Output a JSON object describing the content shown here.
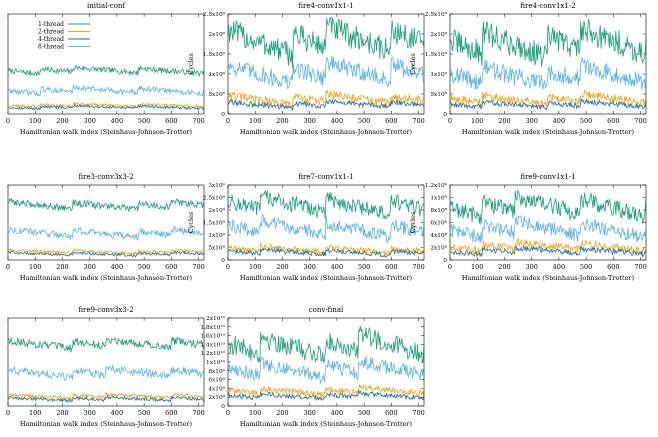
{
  "figure": {
    "series_names": [
      "1-thread",
      "2-thread",
      "4-thread",
      "8-thread"
    ],
    "series_colors": [
      "#1a9e77",
      "#f0a30a",
      "#1f6fa8",
      "#5ab4e6"
    ],
    "xlabel": "Hamiltonian walk index (Steinhaus-Johnson-Trotter)",
    "xticks": [
      "0",
      "100",
      "200",
      "300",
      "400",
      "500",
      "600",
      "700"
    ]
  },
  "chart_data": [
    {
      "type": "line",
      "title": "initial-conf",
      "xlabel": "Hamiltonian walk index (Steinhaus-Johnson-Trotter)",
      "ylabel": "",
      "xlim": [
        0,
        720
      ],
      "ylim": [
        0,
        1.0
      ],
      "yticks": [],
      "legend": {
        "position": "top-left",
        "entries": [
          "1-thread",
          "2-thread",
          "4-thread",
          "8-thread"
        ]
      },
      "series": [
        {
          "name": "1-thread",
          "level": 0.42,
          "variation": 0.06
        },
        {
          "name": "2-thread",
          "level": 0.08,
          "variation": 0.03
        },
        {
          "name": "4-thread",
          "level": 0.06,
          "variation": 0.03
        },
        {
          "name": "8-thread",
          "level": 0.22,
          "variation": 0.06
        }
      ]
    },
    {
      "type": "line",
      "title": "fire4-conv1x1-1",
      "xlabel": "Hamiltonian walk index (Steinhaus-Johnson-Trotter)",
      "ylabel": "Cycles",
      "xlim": [
        0,
        720
      ],
      "ylim": [
        0,
        2500000000
      ],
      "yticks": [
        "0",
        "5x10⁸",
        "1x10⁹",
        "1.5x10⁹",
        "2x10⁹",
        "2.5x10⁹"
      ],
      "series": [
        {
          "name": "1-thread",
          "level": 1650000000,
          "variation": 700000000
        },
        {
          "name": "2-thread",
          "level": 300000000,
          "variation": 250000000
        },
        {
          "name": "4-thread",
          "level": 200000000,
          "variation": 150000000
        },
        {
          "name": "8-thread",
          "level": 900000000,
          "variation": 500000000
        }
      ]
    },
    {
      "type": "line",
      "title": "fire4-conv1x1-2",
      "xlabel": "Hamiltonian walk index (Steinhaus-Johnson-Trotter)",
      "ylabel": "Cycles",
      "xlim": [
        0,
        720
      ],
      "ylim": [
        0,
        2500000000
      ],
      "yticks": [
        "0",
        "5x10⁸",
        "1x10⁹",
        "1.5x10⁹",
        "2x10⁹",
        "2.5x10⁹"
      ],
      "series": [
        {
          "name": "1-thread",
          "level": 1600000000,
          "variation": 700000000
        },
        {
          "name": "2-thread",
          "level": 300000000,
          "variation": 250000000
        },
        {
          "name": "4-thread",
          "level": 200000000,
          "variation": 150000000
        },
        {
          "name": "8-thread",
          "level": 850000000,
          "variation": 500000000
        }
      ]
    },
    {
      "type": "line",
      "title": "fire3-conv3x3-2",
      "xlabel": "Hamiltonian walk index (Steinhaus-Johnson-Trotter)",
      "ylabel": "",
      "xlim": [
        0,
        720
      ],
      "ylim": [
        0,
        1.0
      ],
      "yticks": [],
      "series": [
        {
          "name": "1-thread",
          "level": 0.7,
          "variation": 0.1
        },
        {
          "name": "2-thread",
          "level": 0.1,
          "variation": 0.04
        },
        {
          "name": "4-thread",
          "level": 0.07,
          "variation": 0.04
        },
        {
          "name": "8-thread",
          "level": 0.33,
          "variation": 0.1
        }
      ]
    },
    {
      "type": "line",
      "title": "fire7-conv1x1-1",
      "xlabel": "Hamiltonian walk index (Steinhaus-Johnson-Trotter)",
      "ylabel": "Cycles",
      "xlim": [
        0,
        720
      ],
      "ylim": [
        0,
        3000000000
      ],
      "yticks": [
        "0",
        "5x10⁸",
        "1x10⁹",
        "1.5x10⁹",
        "2x10⁹",
        "2.5x10⁹",
        "3x10⁹"
      ],
      "series": [
        {
          "name": "1-thread",
          "level": 2000000000,
          "variation": 700000000
        },
        {
          "name": "2-thread",
          "level": 350000000,
          "variation": 250000000
        },
        {
          "name": "4-thread",
          "level": 250000000,
          "variation": 200000000
        },
        {
          "name": "8-thread",
          "level": 1100000000,
          "variation": 600000000
        }
      ]
    },
    {
      "type": "line",
      "title": "fire9-conv1x1-1",
      "xlabel": "Hamiltonian walk index (Steinhaus-Johnson-Trotter)",
      "ylabel": "Cycles",
      "xlim": [
        0,
        720
      ],
      "ylim": [
        0,
        1200000000
      ],
      "yticks": [
        "0",
        "2x10⁸",
        "4x10⁸",
        "6x10⁸",
        "8x10⁸",
        "1x10⁹",
        "1.2x10⁹"
      ],
      "series": [
        {
          "name": "1-thread",
          "level": 780000000,
          "variation": 300000000
        },
        {
          "name": "2-thread",
          "level": 180000000,
          "variation": 140000000
        },
        {
          "name": "4-thread",
          "level": 120000000,
          "variation": 100000000
        },
        {
          "name": "8-thread",
          "level": 430000000,
          "variation": 250000000
        }
      ]
    },
    {
      "type": "line",
      "title": "fire9-conv3x3-2",
      "xlabel": "Hamiltonian walk index (Steinhaus-Johnson-Trotter)",
      "ylabel": "",
      "xlim": [
        0,
        720
      ],
      "ylim": [
        0,
        1.0
      ],
      "yticks": [],
      "series": [
        {
          "name": "1-thread",
          "level": 0.68,
          "variation": 0.1
        },
        {
          "name": "2-thread",
          "level": 0.1,
          "variation": 0.04
        },
        {
          "name": "4-thread",
          "level": 0.07,
          "variation": 0.04
        },
        {
          "name": "8-thread",
          "level": 0.35,
          "variation": 0.1
        }
      ]
    },
    {
      "type": "line",
      "title": "conv-final",
      "xlabel": "Hamiltonian walk index (Steinhaus-Johnson-Trotter)",
      "ylabel": "",
      "xlim": [
        0,
        720
      ],
      "ylim": [
        0,
        20000000000
      ],
      "yticks": [
        "0",
        "2x10⁹",
        "4x10⁹",
        "6x10⁹",
        "8x10⁹",
        "1x10¹⁰",
        "1.2x10¹⁰",
        "1.4x10¹⁰",
        "1.6x10¹⁰",
        "1.8x10¹⁰",
        "2x10¹⁰"
      ],
      "series": [
        {
          "name": "1-thread",
          "level": 12500000000,
          "variation": 5000000000
        },
        {
          "name": "2-thread",
          "level": 3000000000,
          "variation": 1500000000
        },
        {
          "name": "4-thread",
          "level": 2000000000,
          "variation": 1200000000
        },
        {
          "name": "8-thread",
          "level": 7500000000,
          "variation": 3500000000
        }
      ]
    }
  ]
}
